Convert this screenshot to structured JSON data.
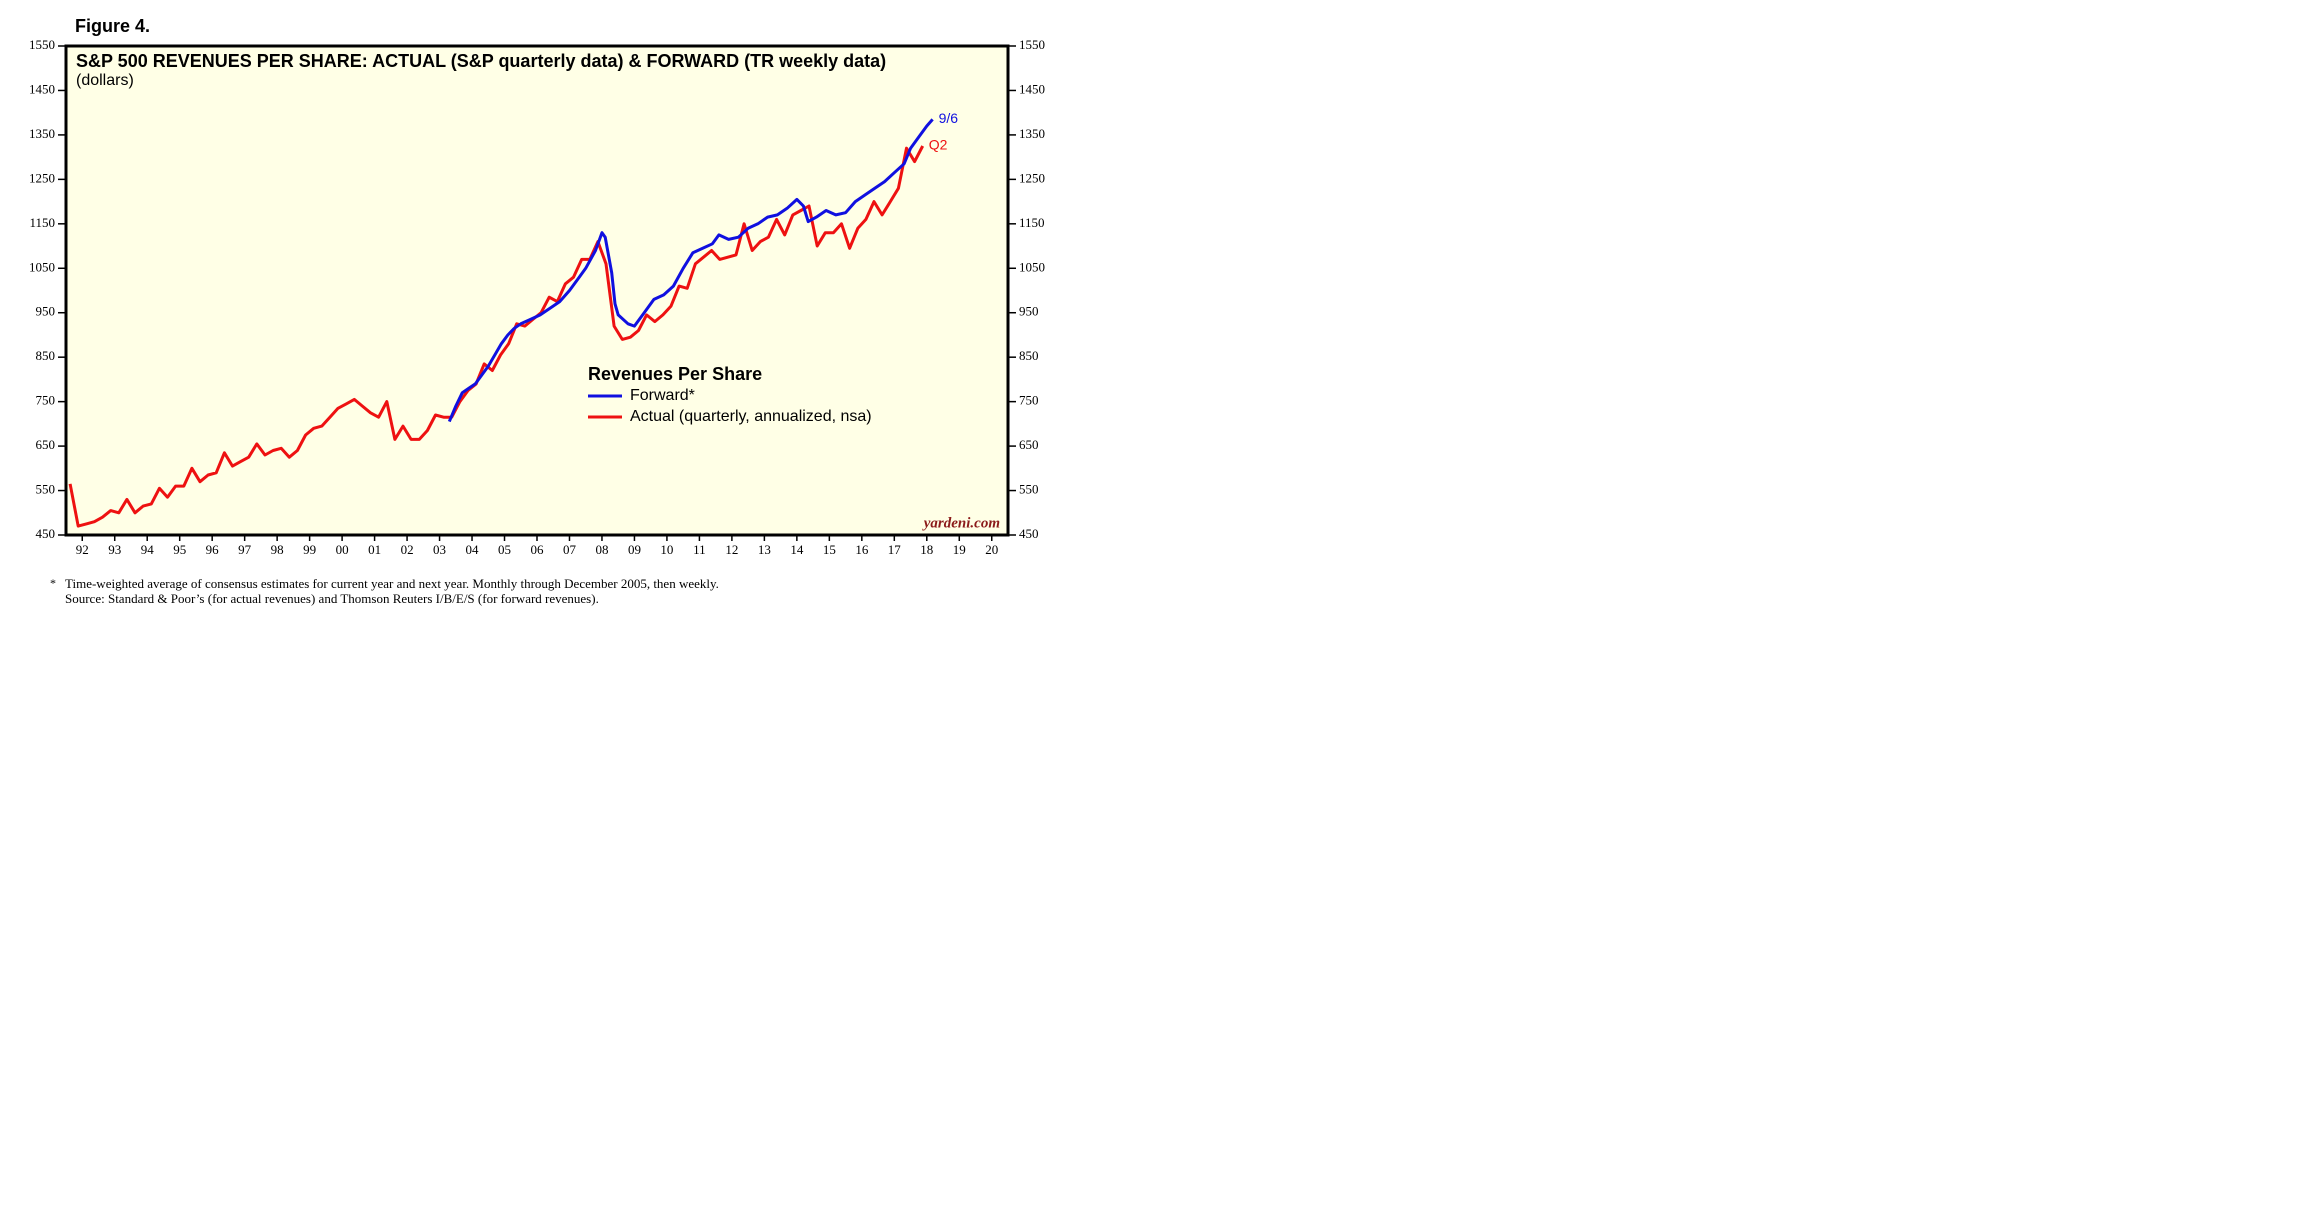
{
  "figure_label": "Figure 4.",
  "chart_data": {
    "type": "line",
    "title": "S&P 500 REVENUES PER SHARE: ACTUAL (S&P quarterly data) & FORWARD (TR weekly data)",
    "subtitle": "(dollars)",
    "legend_title": "Revenues Per Share",
    "legend_position": "center",
    "source": "yardeni.com",
    "end_label_forward": "9/6",
    "end_label_actual": "Q2",
    "xlim": [
      1992,
      2021
    ],
    "ylim": [
      450,
      1550
    ],
    "yticks": [
      450,
      550,
      650,
      750,
      850,
      950,
      1050,
      1150,
      1250,
      1350,
      1450,
      1550
    ],
    "xticks": [
      {
        "value": 1992.5,
        "label": "92"
      },
      {
        "value": 1993.5,
        "label": "93"
      },
      {
        "value": 1994.5,
        "label": "94"
      },
      {
        "value": 1995.5,
        "label": "95"
      },
      {
        "value": 1996.5,
        "label": "96"
      },
      {
        "value": 1997.5,
        "label": "97"
      },
      {
        "value": 1998.5,
        "label": "98"
      },
      {
        "value": 1999.5,
        "label": "99"
      },
      {
        "value": 2000.5,
        "label": "00"
      },
      {
        "value": 2001.5,
        "label": "01"
      },
      {
        "value": 2002.5,
        "label": "02"
      },
      {
        "value": 2003.5,
        "label": "03"
      },
      {
        "value": 2004.5,
        "label": "04"
      },
      {
        "value": 2005.5,
        "label": "05"
      },
      {
        "value": 2006.5,
        "label": "06"
      },
      {
        "value": 2007.5,
        "label": "07"
      },
      {
        "value": 2008.5,
        "label": "08"
      },
      {
        "value": 2009.5,
        "label": "09"
      },
      {
        "value": 2010.5,
        "label": "10"
      },
      {
        "value": 2011.5,
        "label": "11"
      },
      {
        "value": 2012.5,
        "label": "12"
      },
      {
        "value": 2013.5,
        "label": "13"
      },
      {
        "value": 2014.5,
        "label": "14"
      },
      {
        "value": 2015.5,
        "label": "15"
      },
      {
        "value": 2016.5,
        "label": "16"
      },
      {
        "value": 2017.5,
        "label": "17"
      },
      {
        "value": 2018.5,
        "label": "18"
      },
      {
        "value": 2019.5,
        "label": "19"
      },
      {
        "value": 2020.5,
        "label": "20"
      }
    ],
    "series": [
      {
        "name": "Forward*",
        "color": "#1010e0",
        "x": [
          2003.8,
          2004.0,
          2004.2,
          2004.4,
          2004.6,
          2004.8,
          2005.0,
          2005.2,
          2005.4,
          2005.6,
          2005.8,
          2006.0,
          2006.3,
          2006.6,
          2006.9,
          2007.2,
          2007.5,
          2007.8,
          2008.0,
          2008.3,
          2008.5,
          2008.6,
          2008.8,
          2008.9,
          2009.0,
          2009.3,
          2009.5,
          2009.8,
          2010.1,
          2010.4,
          2010.7,
          2011.0,
          2011.3,
          2011.6,
          2011.9,
          2012.1,
          2012.4,
          2012.7,
          2013.0,
          2013.3,
          2013.6,
          2013.9,
          2014.2,
          2014.5,
          2014.7,
          2014.85,
          2015.1,
          2015.4,
          2015.7,
          2016.0,
          2016.3,
          2016.6,
          2016.9,
          2017.2,
          2017.5,
          2017.8,
          2018.0,
          2018.3,
          2018.5,
          2018.68
        ],
        "values": [
          705,
          740,
          770,
          780,
          790,
          810,
          830,
          855,
          880,
          900,
          915,
          925,
          935,
          945,
          960,
          975,
          1000,
          1030,
          1050,
          1090,
          1130,
          1120,
          1040,
          970,
          945,
          925,
          920,
          950,
          980,
          990,
          1010,
          1050,
          1085,
          1095,
          1105,
          1125,
          1115,
          1120,
          1140,
          1150,
          1165,
          1170,
          1185,
          1205,
          1190,
          1155,
          1165,
          1180,
          1170,
          1175,
          1200,
          1215,
          1230,
          1245,
          1265,
          1285,
          1320,
          1350,
          1370,
          1385
        ]
      },
      {
        "name": "Actual (quarterly, annualized, nsa)",
        "color": "#ee1111",
        "x": [
          1992.125,
          1992.375,
          1992.625,
          1992.875,
          1993.125,
          1993.375,
          1993.625,
          1993.875,
          1994.125,
          1994.375,
          1994.625,
          1994.875,
          1995.125,
          1995.375,
          1995.625,
          1995.875,
          1996.125,
          1996.375,
          1996.625,
          1996.875,
          1997.125,
          1997.375,
          1997.625,
          1997.875,
          1998.125,
          1998.375,
          1998.625,
          1998.875,
          1999.125,
          1999.375,
          1999.625,
          1999.875,
          2000.125,
          2000.375,
          2000.625,
          2000.875,
          2001.125,
          2001.375,
          2001.625,
          2001.875,
          2002.125,
          2002.375,
          2002.625,
          2002.875,
          2003.125,
          2003.375,
          2003.625,
          2003.875,
          2004.125,
          2004.375,
          2004.625,
          2004.875,
          2005.125,
          2005.375,
          2005.625,
          2005.875,
          2006.125,
          2006.375,
          2006.625,
          2006.875,
          2007.125,
          2007.375,
          2007.625,
          2007.875,
          2008.125,
          2008.375,
          2008.625,
          2008.875,
          2009.125,
          2009.375,
          2009.625,
          2009.875,
          2010.125,
          2010.375,
          2010.625,
          2010.875,
          2011.125,
          2011.375,
          2011.625,
          2011.875,
          2012.125,
          2012.375,
          2012.625,
          2012.875,
          2013.125,
          2013.375,
          2013.625,
          2013.875,
          2014.125,
          2014.375,
          2014.625,
          2014.875,
          2015.125,
          2015.375,
          2015.625,
          2015.875,
          2016.125,
          2016.375,
          2016.625,
          2016.875,
          2017.125,
          2017.375,
          2017.625,
          2017.875,
          2018.125,
          2018.375
        ],
        "values": [
          565,
          470,
          475,
          480,
          490,
          505,
          500,
          530,
          500,
          515,
          520,
          555,
          535,
          560,
          560,
          600,
          570,
          585,
          590,
          635,
          605,
          615,
          625,
          655,
          630,
          640,
          645,
          625,
          640,
          675,
          690,
          695,
          715,
          735,
          745,
          755,
          740,
          725,
          715,
          750,
          665,
          695,
          665,
          665,
          685,
          720,
          715,
          715,
          750,
          775,
          790,
          835,
          820,
          855,
          880,
          925,
          920,
          935,
          950,
          985,
          975,
          1015,
          1030,
          1070,
          1070,
          1110,
          1060,
          920,
          890,
          895,
          910,
          945,
          930,
          945,
          965,
          1010,
          1005,
          1060,
          1075,
          1090,
          1070,
          1075,
          1080,
          1150,
          1090,
          1110,
          1120,
          1160,
          1125,
          1170,
          1180,
          1190,
          1100,
          1130,
          1130,
          1150,
          1095,
          1140,
          1160,
          1200,
          1170,
          1200,
          1230,
          1320,
          1290,
          1325
        ]
      }
    ]
  },
  "footnote": {
    "marker": "*",
    "lines": [
      "Time-weighted average of consensus estimates for current year and next year. Monthly through December 2005, then weekly.",
      "Source: Standard & Poor’s (for actual revenues) and Thomson Reuters I/B/E/S (for forward revenues)."
    ]
  }
}
